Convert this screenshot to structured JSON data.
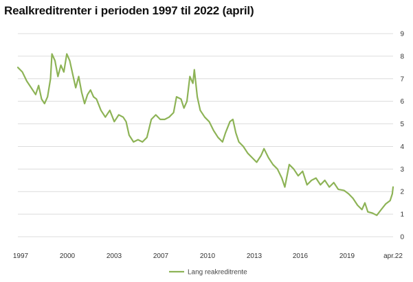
{
  "chart_data": {
    "type": "line",
    "title": "Realkreditrenter i perioden 1997 til 2022 (april)",
    "xlabel": "",
    "ylabel": "",
    "x_ticks": [
      "1997",
      "2000",
      "2003",
      "2007",
      "2010",
      "2013",
      "2016",
      "2019",
      "apr.22"
    ],
    "ylim": [
      0,
      9
    ],
    "y_ticks": [
      "0",
      "1",
      "2",
      "3",
      "4",
      "5",
      "6",
      "7",
      "8",
      "9"
    ],
    "grid": true,
    "legend_position": "bottom",
    "line_color": "#8db356",
    "series": [
      {
        "name": "Lang reakreditrente",
        "points": [
          [
            1997.0,
            7.5
          ],
          [
            1997.3,
            7.3
          ],
          [
            1997.6,
            6.9
          ],
          [
            1997.9,
            6.6
          ],
          [
            1998.2,
            6.3
          ],
          [
            1998.4,
            6.7
          ],
          [
            1998.6,
            6.1
          ],
          [
            1998.8,
            5.9
          ],
          [
            1999.0,
            6.2
          ],
          [
            1999.2,
            7.0
          ],
          [
            1999.3,
            8.1
          ],
          [
            1999.5,
            7.8
          ],
          [
            1999.7,
            7.1
          ],
          [
            1999.9,
            7.6
          ],
          [
            2000.1,
            7.3
          ],
          [
            2000.3,
            8.1
          ],
          [
            2000.5,
            7.8
          ],
          [
            2000.7,
            7.2
          ],
          [
            2000.9,
            6.6
          ],
          [
            2001.1,
            7.1
          ],
          [
            2001.3,
            6.4
          ],
          [
            2001.5,
            5.9
          ],
          [
            2001.7,
            6.3
          ],
          [
            2001.9,
            6.5
          ],
          [
            2002.1,
            6.2
          ],
          [
            2002.3,
            6.1
          ],
          [
            2002.6,
            5.6
          ],
          [
            2002.9,
            5.3
          ],
          [
            2003.2,
            5.6
          ],
          [
            2003.5,
            5.1
          ],
          [
            2003.8,
            5.4
          ],
          [
            2004.1,
            5.3
          ],
          [
            2004.3,
            5.1
          ],
          [
            2004.5,
            4.5
          ],
          [
            2004.8,
            4.2
          ],
          [
            2005.1,
            4.3
          ],
          [
            2005.4,
            4.2
          ],
          [
            2005.7,
            4.4
          ],
          [
            2006.0,
            5.2
          ],
          [
            2006.3,
            5.4
          ],
          [
            2006.6,
            5.2
          ],
          [
            2006.9,
            5.2
          ],
          [
            2007.2,
            5.3
          ],
          [
            2007.5,
            5.5
          ],
          [
            2007.7,
            6.2
          ],
          [
            2008.0,
            6.1
          ],
          [
            2008.2,
            5.7
          ],
          [
            2008.4,
            6.0
          ],
          [
            2008.6,
            7.1
          ],
          [
            2008.8,
            6.8
          ],
          [
            2008.9,
            7.4
          ],
          [
            2009.1,
            6.2
          ],
          [
            2009.3,
            5.6
          ],
          [
            2009.6,
            5.3
          ],
          [
            2009.9,
            5.1
          ],
          [
            2010.2,
            4.7
          ],
          [
            2010.5,
            4.4
          ],
          [
            2010.8,
            4.2
          ],
          [
            2011.0,
            4.6
          ],
          [
            2011.3,
            5.1
          ],
          [
            2011.5,
            5.2
          ],
          [
            2011.7,
            4.6
          ],
          [
            2011.9,
            4.2
          ],
          [
            2012.2,
            4.0
          ],
          [
            2012.5,
            3.7
          ],
          [
            2012.8,
            3.5
          ],
          [
            2013.1,
            3.3
          ],
          [
            2013.4,
            3.6
          ],
          [
            2013.6,
            3.9
          ],
          [
            2013.9,
            3.5
          ],
          [
            2014.2,
            3.2
          ],
          [
            2014.5,
            3.0
          ],
          [
            2014.8,
            2.6
          ],
          [
            2015.0,
            2.2
          ],
          [
            2015.3,
            3.2
          ],
          [
            2015.6,
            3.0
          ],
          [
            2015.9,
            2.7
          ],
          [
            2016.2,
            2.9
          ],
          [
            2016.5,
            2.3
          ],
          [
            2016.8,
            2.5
          ],
          [
            2017.1,
            2.6
          ],
          [
            2017.4,
            2.3
          ],
          [
            2017.7,
            2.5
          ],
          [
            2018.0,
            2.2
          ],
          [
            2018.3,
            2.4
          ],
          [
            2018.6,
            2.1
          ],
          [
            2019.0,
            2.05
          ],
          [
            2019.3,
            1.9
          ],
          [
            2019.6,
            1.7
          ],
          [
            2019.9,
            1.4
          ],
          [
            2020.2,
            1.2
          ],
          [
            2020.4,
            1.5
          ],
          [
            2020.6,
            1.1
          ],
          [
            2020.9,
            1.05
          ],
          [
            2021.2,
            0.95
          ],
          [
            2021.5,
            1.2
          ],
          [
            2021.8,
            1.45
          ],
          [
            2022.1,
            1.6
          ],
          [
            2022.25,
            1.9
          ],
          [
            2022.3,
            2.2
          ]
        ]
      }
    ]
  }
}
